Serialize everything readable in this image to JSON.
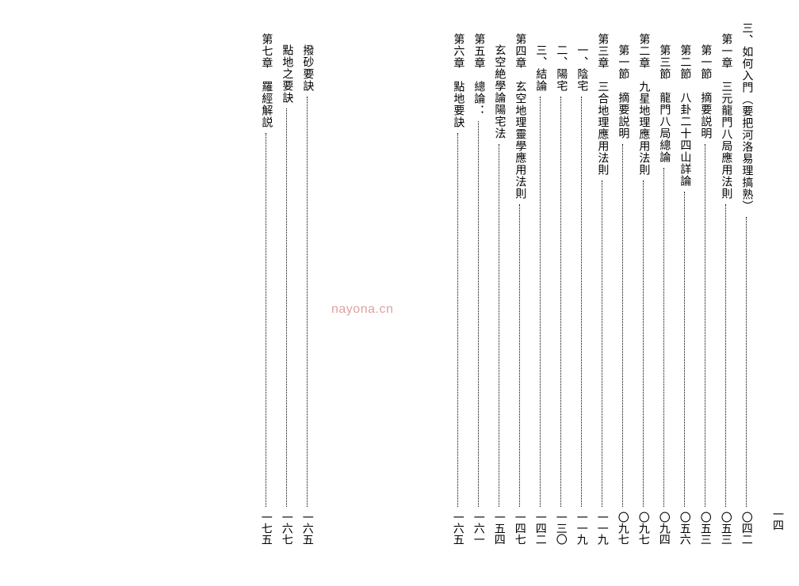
{
  "watermark": "nayona.cn",
  "page_number": "一四",
  "right_cols": [
    {
      "indent": 0,
      "title": "三、如何入門（要把河洛易理搞熟）",
      "page": "〇四二"
    },
    {
      "indent": 14,
      "title": "第一章　三元龍門八局應用法則",
      "page": "〇五三"
    },
    {
      "indent": 28,
      "title": "第一節　摘要説明",
      "page": "〇五三"
    },
    {
      "indent": 28,
      "title": "第二節　八卦二十四山詳論",
      "page": "〇五六"
    },
    {
      "indent": 28,
      "title": "第三節　龍門八局總論",
      "page": "〇九四"
    },
    {
      "indent": 14,
      "title": "第二章　九星地理應用法則",
      "page": "〇九七"
    },
    {
      "indent": 28,
      "title": "第一節　摘要説明",
      "page": "〇九七"
    },
    {
      "indent": 14,
      "title": "第三章　三合地理應用法則",
      "page": "一一九"
    },
    {
      "indent": 28,
      "title": "一、陰宅",
      "page": "一一九"
    },
    {
      "indent": 28,
      "title": "二、陽宅",
      "page": "一三〇"
    },
    {
      "indent": 28,
      "title": "三、結論",
      "page": "一四二"
    },
    {
      "indent": 14,
      "title": "第四章　玄空地理靈學應用法則",
      "page": "一四七"
    },
    {
      "indent": 28,
      "title": "玄空絶學論陽宅法",
      "page": "一五四"
    },
    {
      "indent": 14,
      "title": "第五章　總論：",
      "page": "一六一"
    },
    {
      "indent": 14,
      "title": "第六章　點地要訣",
      "page": "一六五"
    }
  ],
  "left_cols": [
    {
      "indent": 28,
      "title": "撥砂要訣",
      "page": "一六五"
    },
    {
      "indent": 28,
      "title": "點地之要訣",
      "page": "一六七"
    },
    {
      "indent": 14,
      "title": "第七章　羅經解説",
      "page": "一七五"
    }
  ]
}
